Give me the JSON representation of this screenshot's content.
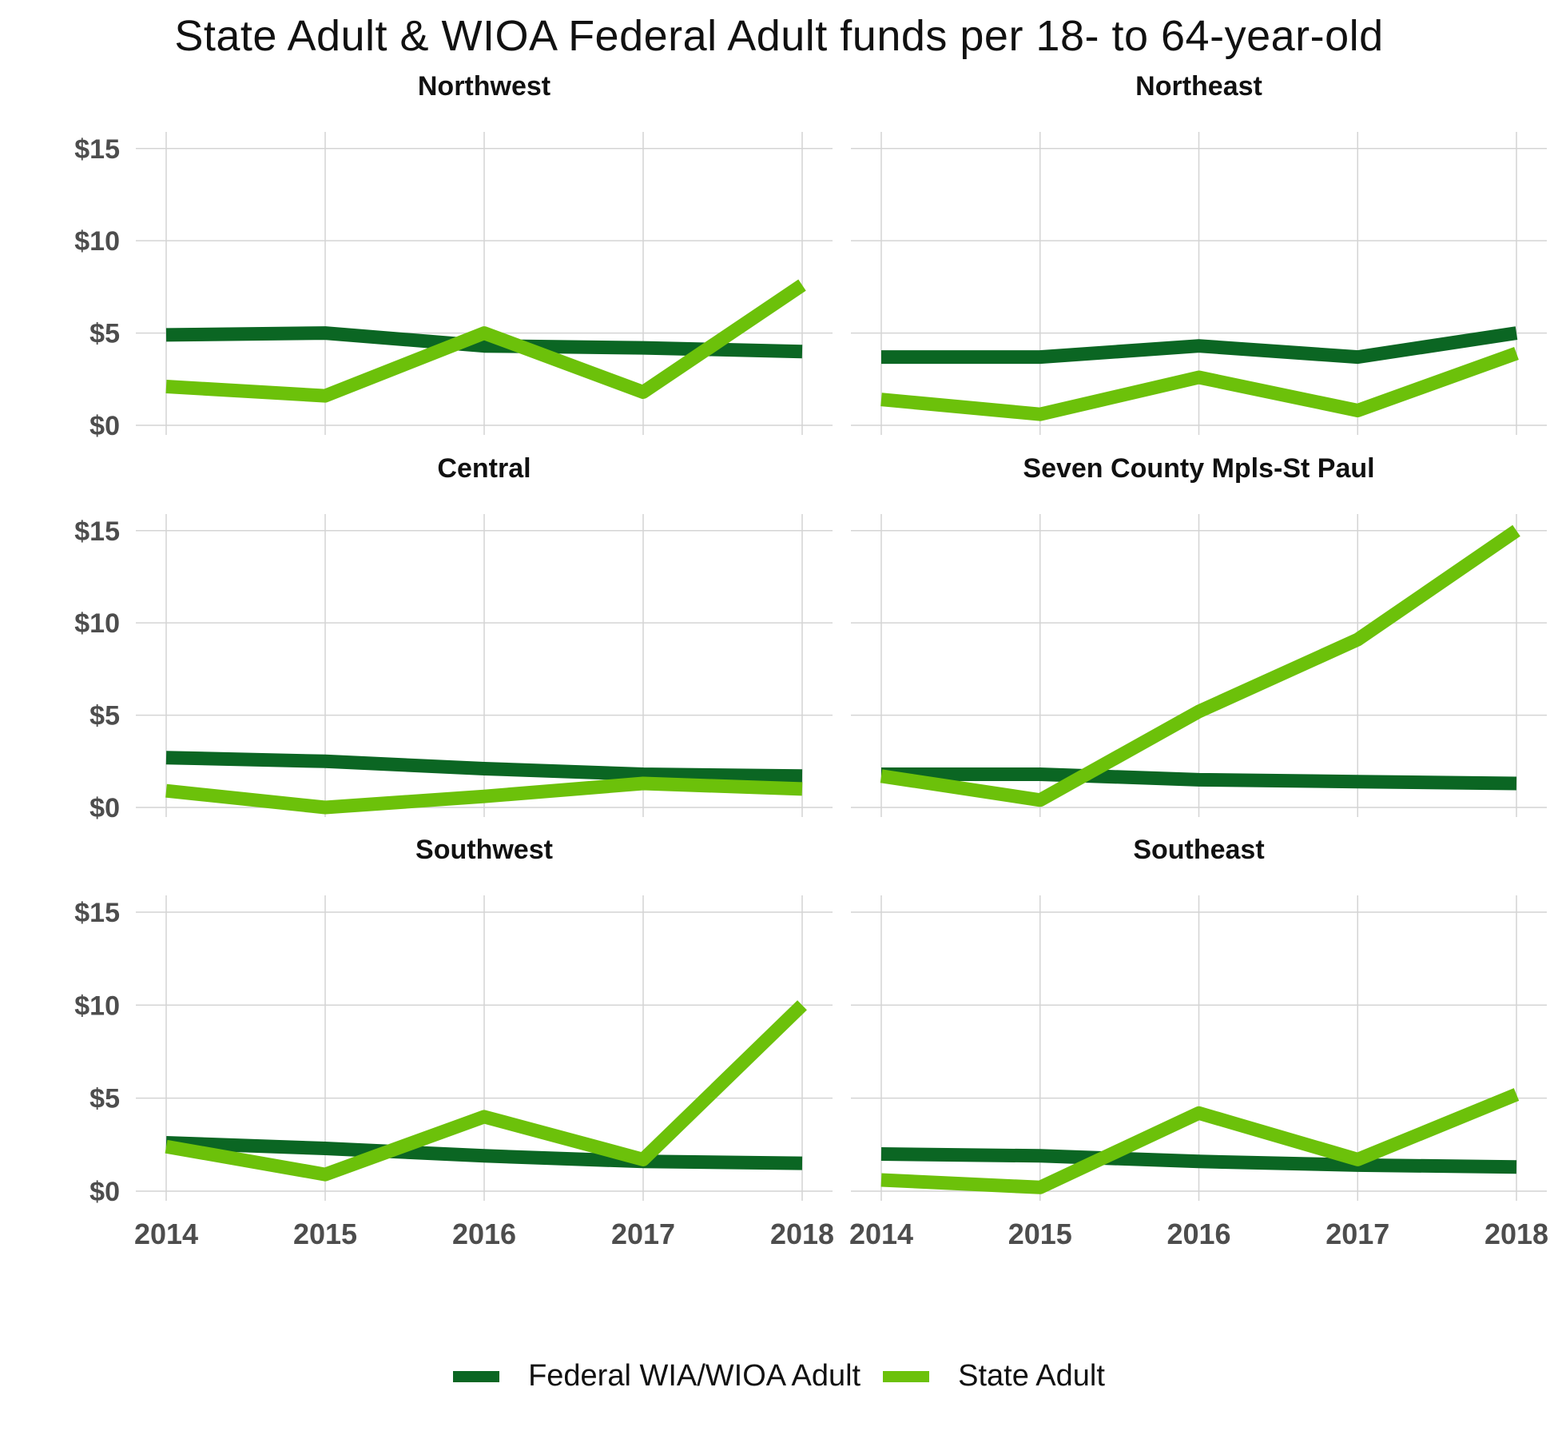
{
  "chart_data": {
    "type": "line",
    "title": "State Adult & WIOA Federal Adult funds per 18- to 64-year-old",
    "x": [
      2014,
      2015,
      2016,
      2017,
      2018
    ],
    "y_ticks": [
      "$0",
      "$5",
      "$10",
      "$15"
    ],
    "y_tick_values": [
      0,
      5,
      10,
      15
    ],
    "ylim": [
      0,
      15.9
    ],
    "grid": true,
    "legend_position": "bottom",
    "series_styles": [
      {
        "name": "Federal WIA/WIOA Adult",
        "color": "#0b6623"
      },
      {
        "name": "State Adult",
        "color": "#6cc10a"
      }
    ],
    "panels": [
      {
        "title": "Northwest",
        "series": [
          {
            "name": "Federal WIA/WIOA Adult",
            "values": [
              4.9,
              5.0,
              4.3,
              4.2,
              4.0
            ]
          },
          {
            "name": "State Adult",
            "values": [
              2.1,
              1.6,
              5.0,
              1.8,
              7.6
            ]
          }
        ]
      },
      {
        "title": "Northeast",
        "series": [
          {
            "name": "Federal WIA/WIOA Adult",
            "values": [
              3.7,
              3.7,
              4.3,
              3.7,
              5.0
            ]
          },
          {
            "name": "State Adult",
            "values": [
              1.4,
              0.6,
              2.6,
              0.8,
              3.9
            ]
          }
        ]
      },
      {
        "title": "Central",
        "series": [
          {
            "name": "Federal WIA/WIOA Adult",
            "values": [
              2.7,
              2.5,
              2.1,
              1.8,
              1.7
            ]
          },
          {
            "name": "State Adult",
            "values": [
              0.9,
              0.0,
              0.6,
              1.3,
              1.0
            ]
          }
        ]
      },
      {
        "title": "Seven County Mpls-St Paul",
        "series": [
          {
            "name": "Federal WIA/WIOA Adult",
            "values": [
              1.8,
              1.8,
              1.5,
              1.4,
              1.3
            ]
          },
          {
            "name": "State Adult",
            "values": [
              1.7,
              0.4,
              5.2,
              9.1,
              15.0
            ]
          }
        ]
      },
      {
        "title": "Southwest",
        "series": [
          {
            "name": "Federal WIA/WIOA Adult",
            "values": [
              2.6,
              2.3,
              1.9,
              1.6,
              1.5
            ]
          },
          {
            "name": "State Adult",
            "values": [
              2.4,
              0.9,
              4.0,
              1.7,
              10.0
            ]
          }
        ]
      },
      {
        "title": "Southeast",
        "series": [
          {
            "name": "Federal WIA/WIOA Adult",
            "values": [
              2.0,
              1.9,
              1.6,
              1.4,
              1.3
            ]
          },
          {
            "name": "State Adult",
            "values": [
              0.6,
              0.2,
              4.2,
              1.7,
              5.2
            ]
          }
        ]
      }
    ]
  }
}
